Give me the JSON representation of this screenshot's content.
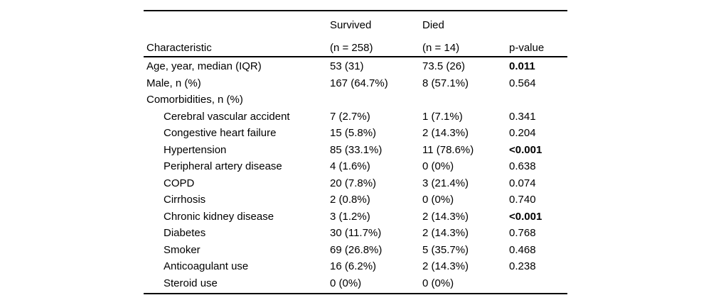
{
  "colors": {
    "background": "#ffffff",
    "text": "#000000",
    "rule": "#000000"
  },
  "table": {
    "header": {
      "characteristic": "Characteristic",
      "survived_line1": "Survived",
      "survived_line2": "(n = 258)",
      "died_line1": "Died",
      "died_line2": "(n = 14)",
      "p_value": "p-value"
    },
    "rows": [
      {
        "label": "Age, year, median (IQR)",
        "indent": false,
        "survived": "53 (31)",
        "died": "73.5 (26)",
        "p": "0.011",
        "p_bold": true
      },
      {
        "label": "Male, n (%)",
        "indent": false,
        "survived": "167 (64.7%)",
        "died": "8 (57.1%)",
        "p": "0.564",
        "p_bold": false
      },
      {
        "label": "Comorbidities, n (%)",
        "indent": false,
        "survived": "",
        "died": "",
        "p": "",
        "p_bold": false
      },
      {
        "label": "Cerebral vascular accident",
        "indent": true,
        "survived": "7 (2.7%)",
        "died": "1 (7.1%)",
        "p": "0.341",
        "p_bold": false
      },
      {
        "label": "Congestive heart failure",
        "indent": true,
        "survived": "15 (5.8%)",
        "died": "2 (14.3%)",
        "p": "0.204",
        "p_bold": false
      },
      {
        "label": "Hypertension",
        "indent": true,
        "survived": "85 (33.1%)",
        "died": "11 (78.6%)",
        "p": "<0.001",
        "p_bold": true
      },
      {
        "label": "Peripheral artery disease",
        "indent": true,
        "survived": "4 (1.6%)",
        "died": "0 (0%)",
        "p": "0.638",
        "p_bold": false
      },
      {
        "label": "COPD",
        "indent": true,
        "survived": "20 (7.8%)",
        "died": "3 (21.4%)",
        "p": "0.074",
        "p_bold": false
      },
      {
        "label": "Cirrhosis",
        "indent": true,
        "survived": "2 (0.8%)",
        "died": "0 (0%)",
        "p": "0.740",
        "p_bold": false
      },
      {
        "label": "Chronic kidney disease",
        "indent": true,
        "survived": "3 (1.2%)",
        "died": "2 (14.3%)",
        "p": "<0.001",
        "p_bold": true
      },
      {
        "label": "Diabetes",
        "indent": true,
        "survived": "30 (11.7%)",
        "died": "2 (14.3%)",
        "p": "0.768",
        "p_bold": false
      },
      {
        "label": "Smoker",
        "indent": true,
        "survived": "69 (26.8%)",
        "died": "5 (35.7%)",
        "p": "0.468",
        "p_bold": false
      },
      {
        "label": "Anticoagulant use",
        "indent": true,
        "survived": "16 (6.2%)",
        "died": "2 (14.3%)",
        "p": "0.238",
        "p_bold": false
      },
      {
        "label": "Steroid use",
        "indent": true,
        "survived": "0 (0%)",
        "died": "0 (0%)",
        "p": "",
        "p_bold": false
      }
    ]
  }
}
